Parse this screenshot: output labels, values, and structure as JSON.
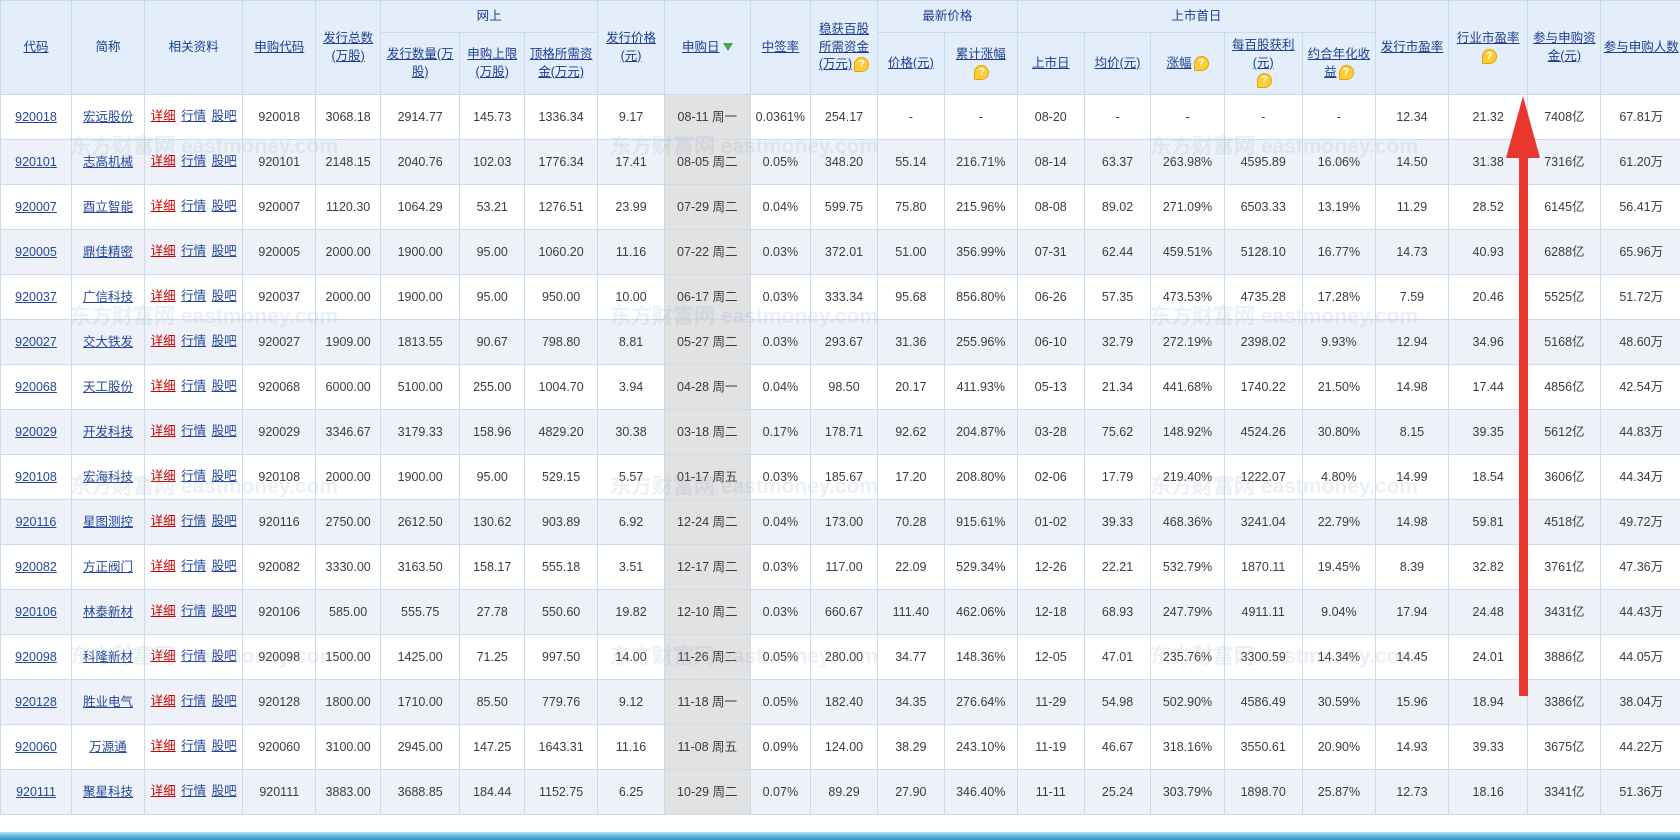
{
  "watermark": "东方财富网 eastmoney.com",
  "help": "?",
  "colors": {
    "accent_red": "#e8372c",
    "header_bg": "#e3eefa",
    "link_navy": "#1d3e94",
    "detail_red": "#cc0000",
    "sort_green": "#3fae49",
    "help_gold": "#ffcc33"
  },
  "header": {
    "code": "代码",
    "name": "简称",
    "info": "相关资料",
    "sub_code": "申购代码",
    "total_issue": "发行总数(万股)",
    "online_group": "网上",
    "online_qty": "发行数量(万股)",
    "sub_limit": "申购上限(万股)",
    "max_fund": "顶格所需资金(万元)",
    "issue_price": "发行价格(元)",
    "sub_date": "申购日",
    "win_rate": "中签率",
    "fund_100": "稳获百股所需资金(万元)",
    "latest_group": "最新价格",
    "price": "价格(元)",
    "cum_change": "累计涨幅",
    "first_day_group": "上市首日",
    "list_date": "上市日",
    "avg_price": "均价(元)",
    "change": "涨幅",
    "profit_100": "每百股获利(元)",
    "annual_yield": "约合年化收益",
    "issue_pe": "发行市盈率",
    "industry_pe": "行业市盈率",
    "sub_fund": "参与申购资金(元)",
    "sub_people": "参与申购人数"
  },
  "links": {
    "detail": "详细",
    "quote": "行情",
    "bar": "股吧"
  },
  "rows": [
    [
      "920018",
      "宏远股份",
      "920018",
      "3068.18",
      "2914.77",
      "145.73",
      "1336.34",
      "9.17",
      "08-11 周一",
      "0.0361%",
      "254.17",
      "-",
      "-",
      "08-20",
      "-",
      "-",
      "-",
      "-",
      "12.34",
      "21.32",
      "7408亿",
      "67.81万"
    ],
    [
      "920101",
      "志高机械",
      "920101",
      "2148.15",
      "2040.76",
      "102.03",
      "1776.34",
      "17.41",
      "08-05 周二",
      "0.05%",
      "348.20",
      "55.14",
      "216.71%",
      "08-14",
      "63.37",
      "263.98%",
      "4595.89",
      "16.06%",
      "14.50",
      "31.38",
      "7316亿",
      "61.20万"
    ],
    [
      "920007",
      "酉立智能",
      "920007",
      "1120.30",
      "1064.29",
      "53.21",
      "1276.51",
      "23.99",
      "07-29 周二",
      "0.04%",
      "599.75",
      "75.80",
      "215.96%",
      "08-08",
      "89.02",
      "271.09%",
      "6503.33",
      "13.19%",
      "11.29",
      "28.52",
      "6145亿",
      "56.41万"
    ],
    [
      "920005",
      "鼎佳精密",
      "920005",
      "2000.00",
      "1900.00",
      "95.00",
      "1060.20",
      "11.16",
      "07-22 周二",
      "0.03%",
      "372.01",
      "51.00",
      "356.99%",
      "07-31",
      "62.44",
      "459.51%",
      "5128.10",
      "16.77%",
      "14.73",
      "40.93",
      "6288亿",
      "65.96万"
    ],
    [
      "920037",
      "广信科技",
      "920037",
      "2000.00",
      "1900.00",
      "95.00",
      "950.00",
      "10.00",
      "06-17 周二",
      "0.03%",
      "333.34",
      "95.68",
      "856.80%",
      "06-26",
      "57.35",
      "473.53%",
      "4735.28",
      "17.28%",
      "7.59",
      "20.46",
      "5525亿",
      "51.72万"
    ],
    [
      "920027",
      "交大铁发",
      "920027",
      "1909.00",
      "1813.55",
      "90.67",
      "798.80",
      "8.81",
      "05-27 周二",
      "0.03%",
      "293.67",
      "31.36",
      "255.96%",
      "06-10",
      "32.79",
      "272.19%",
      "2398.02",
      "9.93%",
      "12.94",
      "34.96",
      "5168亿",
      "48.60万"
    ],
    [
      "920068",
      "天工股份",
      "920068",
      "6000.00",
      "5100.00",
      "255.00",
      "1004.70",
      "3.94",
      "04-28 周一",
      "0.04%",
      "98.50",
      "20.17",
      "411.93%",
      "05-13",
      "21.34",
      "441.68%",
      "1740.22",
      "21.50%",
      "14.98",
      "17.44",
      "4856亿",
      "42.54万"
    ],
    [
      "920029",
      "开发科技",
      "920029",
      "3346.67",
      "3179.33",
      "158.96",
      "4829.20",
      "30.38",
      "03-18 周二",
      "0.17%",
      "178.71",
      "92.62",
      "204.87%",
      "03-28",
      "75.62",
      "148.92%",
      "4524.26",
      "30.80%",
      "8.15",
      "39.35",
      "5612亿",
      "44.83万"
    ],
    [
      "920108",
      "宏海科技",
      "920108",
      "2000.00",
      "1900.00",
      "95.00",
      "529.15",
      "5.57",
      "01-17 周五",
      "0.03%",
      "185.67",
      "17.20",
      "208.80%",
      "02-06",
      "17.79",
      "219.40%",
      "1222.07",
      "4.80%",
      "14.99",
      "18.54",
      "3606亿",
      "44.34万"
    ],
    [
      "920116",
      "星图测控",
      "920116",
      "2750.00",
      "2612.50",
      "130.62",
      "903.89",
      "6.92",
      "12-24 周二",
      "0.04%",
      "173.00",
      "70.28",
      "915.61%",
      "01-02",
      "39.33",
      "468.36%",
      "3241.04",
      "22.79%",
      "14.98",
      "59.81",
      "4518亿",
      "49.72万"
    ],
    [
      "920082",
      "方正阀门",
      "920082",
      "3330.00",
      "3163.50",
      "158.17",
      "555.18",
      "3.51",
      "12-17 周二",
      "0.03%",
      "117.00",
      "22.09",
      "529.34%",
      "12-26",
      "22.21",
      "532.79%",
      "1870.11",
      "19.45%",
      "8.39",
      "32.82",
      "3761亿",
      "47.36万"
    ],
    [
      "920106",
      "林泰新材",
      "920106",
      "585.00",
      "555.75",
      "27.78",
      "550.60",
      "19.82",
      "12-10 周二",
      "0.03%",
      "660.67",
      "111.40",
      "462.06%",
      "12-18",
      "68.93",
      "247.79%",
      "4911.11",
      "9.04%",
      "17.94",
      "24.48",
      "3431亿",
      "44.43万"
    ],
    [
      "920098",
      "科隆新材",
      "920098",
      "1500.00",
      "1425.00",
      "71.25",
      "997.50",
      "14.00",
      "11-26 周二",
      "0.05%",
      "280.00",
      "34.77",
      "148.36%",
      "12-05",
      "47.01",
      "235.76%",
      "3300.59",
      "14.34%",
      "14.45",
      "24.01",
      "3886亿",
      "44.05万"
    ],
    [
      "920128",
      "胜业电气",
      "920128",
      "1800.00",
      "1710.00",
      "85.50",
      "779.76",
      "9.12",
      "11-18 周一",
      "0.05%",
      "182.40",
      "34.35",
      "276.64%",
      "11-29",
      "54.98",
      "502.90%",
      "4586.49",
      "30.59%",
      "15.96",
      "18.94",
      "3386亿",
      "38.04万"
    ],
    [
      "920060",
      "万源通",
      "920060",
      "3100.00",
      "2945.00",
      "147.25",
      "1643.31",
      "11.16",
      "11-08 周五",
      "0.09%",
      "124.00",
      "38.29",
      "243.10%",
      "11-19",
      "46.67",
      "318.16%",
      "3550.61",
      "20.90%",
      "14.93",
      "39.33",
      "3675亿",
      "44.22万"
    ],
    [
      "920111",
      "聚星科技",
      "920111",
      "3883.00",
      "3688.85",
      "184.44",
      "1152.75",
      "6.25",
      "10-29 周二",
      "0.07%",
      "89.29",
      "27.90",
      "346.40%",
      "11-11",
      "25.24",
      "303.79%",
      "1898.70",
      "25.87%",
      "12.73",
      "18.16",
      "3341亿",
      "51.36万"
    ]
  ]
}
